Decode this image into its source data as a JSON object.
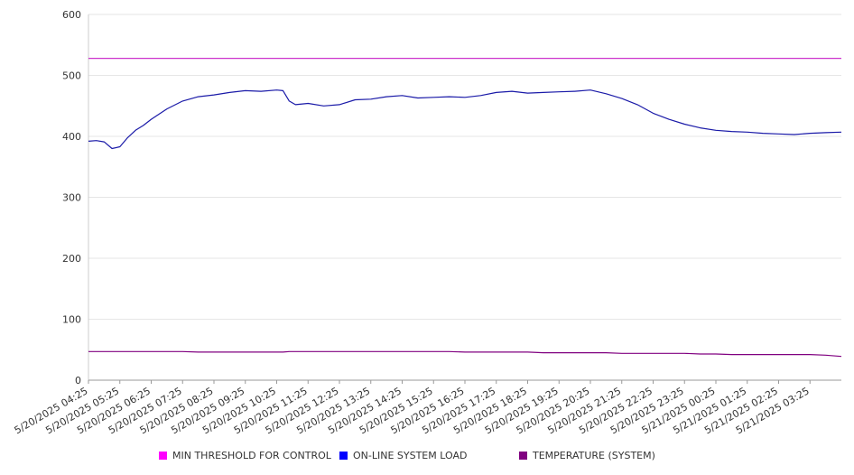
{
  "chart_data": {
    "type": "line",
    "title": "",
    "xlabel": "",
    "ylabel": "",
    "ylim": [
      0,
      600
    ],
    "yticks": [
      0,
      100,
      200,
      300,
      400,
      500,
      600
    ],
    "grid": true,
    "legend_position": "bottom",
    "x_tick_labels": [
      "5/20/2025 04:25",
      "5/20/2025 05:25",
      "5/20/2025 06:25",
      "5/20/2025 07:25",
      "5/20/2025 08:25",
      "5/20/2025 09:25",
      "5/20/2025 10:25",
      "5/20/2025 11:25",
      "5/20/2025 12:25",
      "5/20/2025 13:25",
      "5/20/2025 14:25",
      "5/20/2025 15:25",
      "5/20/2025 16:25",
      "5/20/2025 17:25",
      "5/20/2025 18:25",
      "5/20/2025 19:25",
      "5/20/2025 20:25",
      "5/20/2025 21:25",
      "5/20/2025 22:25",
      "5/20/2025 23:25",
      "5/21/2025 00:25",
      "5/21/2025 01:25",
      "5/21/2025 02:25",
      "5/21/2025 03:25"
    ],
    "x_hours": [
      0,
      0.25,
      0.5,
      0.75,
      1,
      1.25,
      1.5,
      1.75,
      2,
      2.5,
      3,
      3.5,
      4,
      4.5,
      5,
      5.5,
      6,
      6.2,
      6.4,
      6.6,
      7,
      7.5,
      8,
      8.5,
      9,
      9.5,
      10,
      10.5,
      11,
      11.5,
      12,
      12.5,
      13,
      13.5,
      14,
      14.5,
      15,
      15.5,
      16,
      16.5,
      17,
      17.5,
      18,
      18.5,
      19,
      19.5,
      20,
      20.5,
      21,
      21.5,
      22,
      22.5,
      23,
      23.5,
      24
    ],
    "series": [
      {
        "name": "MIN THRESHOLD FOR CONTROL",
        "color": "#ff00ff",
        "line_color": "#cc33cc",
        "values": [
          528,
          528,
          528,
          528,
          528,
          528,
          528,
          528,
          528,
          528,
          528,
          528,
          528,
          528,
          528,
          528,
          528,
          528,
          528,
          528,
          528,
          528,
          528,
          528,
          528,
          528,
          528,
          528,
          528,
          528,
          528,
          528,
          528,
          528,
          528,
          528,
          528,
          528,
          528,
          528,
          528,
          528,
          528,
          528,
          528,
          528,
          528,
          528,
          528,
          528,
          528,
          528,
          528,
          528,
          528
        ]
      },
      {
        "name": "ON-LINE SYSTEM LOAD",
        "color": "#0000ff",
        "line_color": "#1a1aa8",
        "values": [
          392,
          393,
          391,
          380,
          383,
          398,
          410,
          418,
          428,
          445,
          458,
          465,
          468,
          472,
          475,
          474,
          476,
          475,
          458,
          452,
          454,
          450,
          452,
          460,
          461,
          465,
          467,
          463,
          464,
          465,
          464,
          467,
          472,
          474,
          471,
          472,
          473,
          474,
          476,
          470,
          462,
          452,
          438,
          428,
          420,
          414,
          410,
          408,
          407,
          405,
          404,
          403,
          405,
          406,
          407
        ]
      },
      {
        "name": "TEMPERATURE (SYSTEM)",
        "color": "#800080",
        "line_color": "#800080",
        "values": [
          47,
          47,
          47,
          47,
          47,
          47,
          47,
          47,
          47,
          47,
          47,
          46,
          46,
          46,
          46,
          46,
          46,
          46,
          47,
          47,
          47,
          47,
          47,
          47,
          47,
          47,
          47,
          47,
          47,
          47,
          46,
          46,
          46,
          46,
          46,
          45,
          45,
          45,
          45,
          45,
          44,
          44,
          44,
          44,
          44,
          43,
          43,
          42,
          42,
          42,
          42,
          42,
          42,
          41,
          39
        ]
      }
    ]
  },
  "legend": {
    "items": [
      {
        "label": "MIN THRESHOLD FOR CONTROL",
        "color": "#ff00ff"
      },
      {
        "label": "ON-LINE SYSTEM LOAD",
        "color": "#0000ff"
      },
      {
        "label": "TEMPERATURE (SYSTEM)",
        "color": "#800080"
      }
    ]
  }
}
